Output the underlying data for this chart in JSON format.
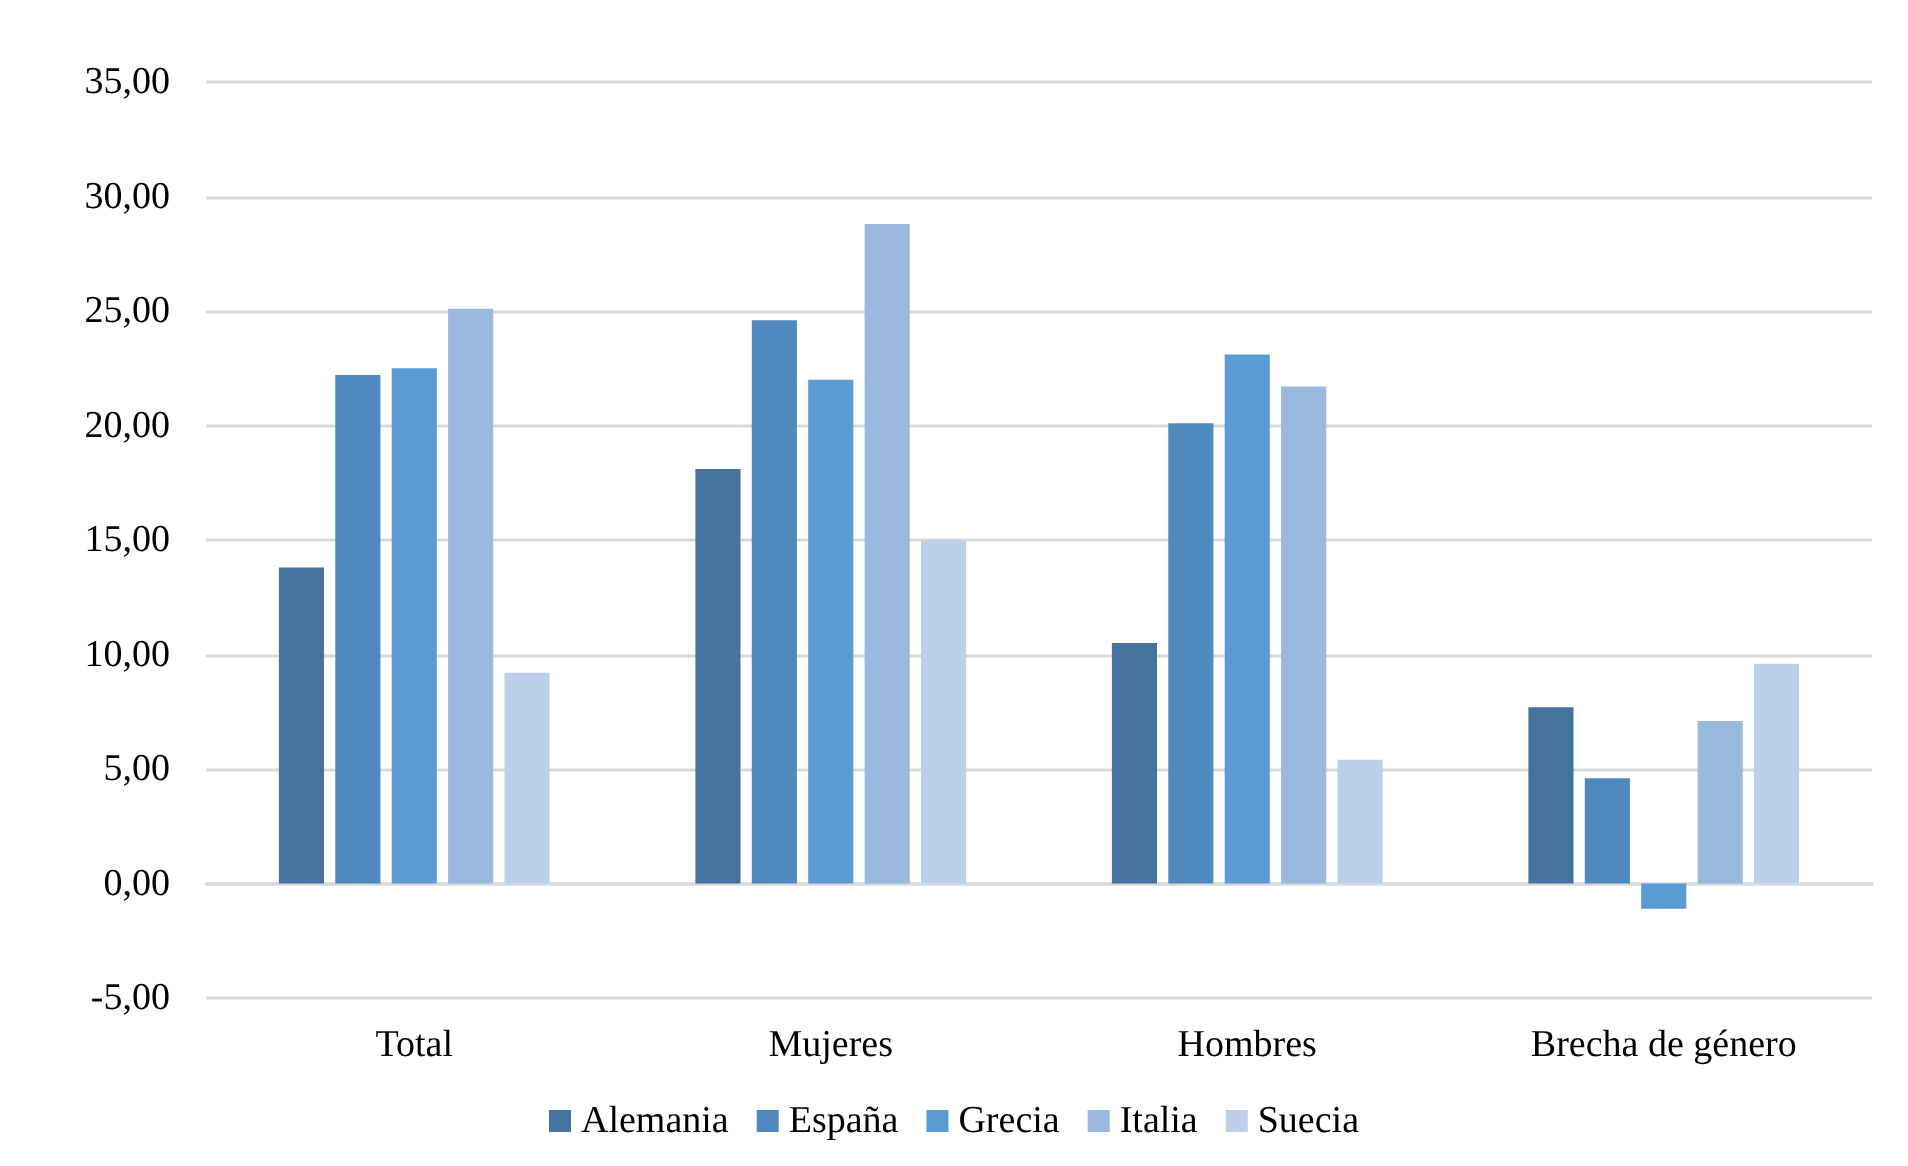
{
  "chart_data": {
    "type": "bar",
    "categories": [
      "Total",
      "Mujeres",
      "Hombres",
      "Brecha de género"
    ],
    "series": [
      {
        "name": "Alemania",
        "color": "#44739e",
        "values": [
          13.8,
          18.1,
          10.5,
          7.7
        ]
      },
      {
        "name": "España",
        "color": "#4f89bd",
        "values": [
          22.2,
          24.6,
          20.1,
          4.6
        ]
      },
      {
        "name": "Grecia",
        "color": "#5b9bd5",
        "values": [
          22.5,
          22.0,
          23.1,
          -1.1
        ]
      },
      {
        "name": "Italia",
        "color": "#9ab9df",
        "values": [
          25.1,
          28.8,
          21.7,
          7.1
        ]
      },
      {
        "name": "Suecia",
        "color": "#bdd0ea",
        "values": [
          9.2,
          15.0,
          5.4,
          9.6
        ]
      }
    ],
    "ylim": [
      -5,
      35
    ],
    "yticks": [
      {
        "value": -5,
        "label": "-5,00"
      },
      {
        "value": 0,
        "label": "0,00"
      },
      {
        "value": 5,
        "label": "5,00"
      },
      {
        "value": 10,
        "label": "10,00"
      },
      {
        "value": 15,
        "label": "15,00"
      },
      {
        "value": 20,
        "label": "20,00"
      },
      {
        "value": 25,
        "label": "25,00"
      },
      {
        "value": 30,
        "label": "30,00"
      },
      {
        "value": 35,
        "label": "35,00"
      }
    ],
    "grid": true,
    "legend": "bottom"
  }
}
